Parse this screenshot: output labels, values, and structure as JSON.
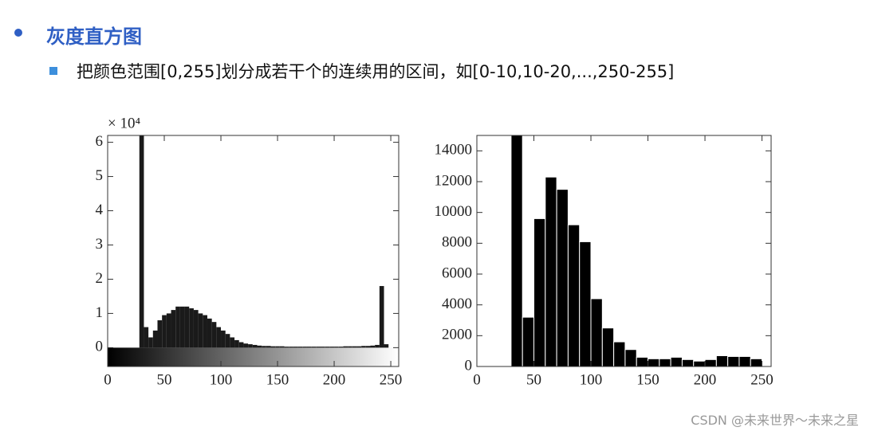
{
  "header": {
    "title": "灰度直方图",
    "subtitle": "把颜色范围[0,255]划分成若干个的连续用的区间，如[0-10,10-20,...,250-255]"
  },
  "watermark": "CSDN @未来世界～未来之星",
  "chart_data": [
    {
      "type": "histogram",
      "multiplier": "× 10⁴",
      "color": "#1a1a1a",
      "bins": [
        0,
        4,
        8,
        12,
        16,
        20,
        24,
        28,
        32,
        36,
        40,
        44,
        48,
        52,
        56,
        60,
        64,
        68,
        72,
        76,
        80,
        84,
        88,
        92,
        96,
        100,
        104,
        108,
        112,
        116,
        120,
        124,
        128,
        132,
        136,
        140,
        144,
        148,
        152,
        156,
        160,
        164,
        168,
        172,
        176,
        180,
        184,
        188,
        192,
        196,
        200,
        204,
        208,
        212,
        216,
        220,
        224,
        228,
        232,
        236,
        240,
        244,
        248,
        252,
        256
      ],
      "values": [
        0,
        0,
        0,
        0,
        0,
        0,
        0,
        6.2,
        0.6,
        0.3,
        0.5,
        0.8,
        0.95,
        1.0,
        1.1,
        1.2,
        1.2,
        1.2,
        1.15,
        1.1,
        1.0,
        0.95,
        0.85,
        0.75,
        0.6,
        0.5,
        0.4,
        0.3,
        0.22,
        0.16,
        0.12,
        0.1,
        0.08,
        0.06,
        0.05,
        0.05,
        0.04,
        0.04,
        0.04,
        0.03,
        0.03,
        0.03,
        0.03,
        0.03,
        0.03,
        0.03,
        0.03,
        0.03,
        0.03,
        0.03,
        0.03,
        0.03,
        0.04,
        0.04,
        0.04,
        0.04,
        0.05,
        0.05,
        0.06,
        0.08,
        1.8,
        0.1,
        0,
        0
      ],
      "xlim": [
        0,
        257
      ],
      "ylim": [
        -0.55,
        6.2
      ],
      "xticks": [
        0,
        50,
        100,
        150,
        200,
        250
      ],
      "yticks": [
        0,
        1,
        2,
        3,
        4,
        5,
        6
      ],
      "gradient_bar": true
    },
    {
      "type": "histogram",
      "color": "#000000",
      "bins": [
        30,
        40,
        50,
        60,
        70,
        80,
        90,
        100,
        110,
        120,
        130,
        140,
        150,
        160,
        170,
        180,
        190,
        200,
        210,
        220,
        230,
        240,
        250
      ],
      "values": [
        15000,
        3200,
        9600,
        12300,
        11500,
        9200,
        8100,
        4400,
        2500,
        1600,
        1100,
        600,
        500,
        500,
        600,
        450,
        350,
        450,
        700,
        650,
        650,
        500
      ],
      "xlim": [
        0,
        258
      ],
      "ylim": [
        0,
        15000
      ],
      "xticks": [
        0,
        50,
        100,
        150,
        200,
        250
      ],
      "yticks": [
        0,
        2000,
        4000,
        6000,
        8000,
        10000,
        12000,
        14000
      ],
      "gradient_bar": false
    }
  ]
}
